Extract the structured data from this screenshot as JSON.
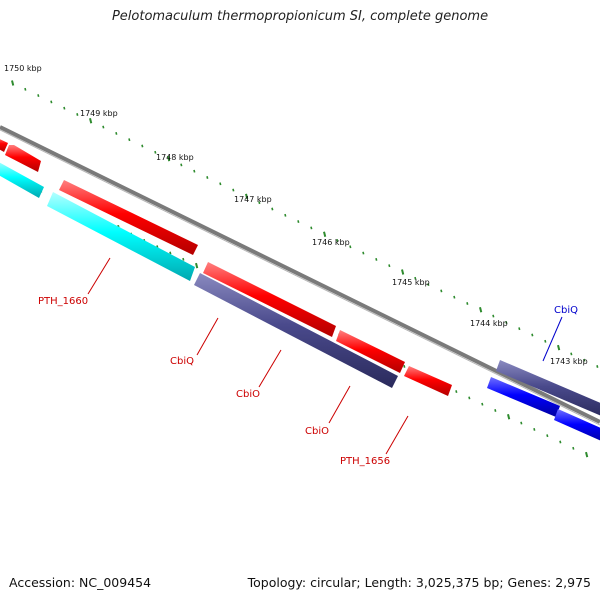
{
  "title": "Pelotomaculum thermopropionicum SI, complete genome",
  "footer": {
    "accession": "Accession: NC_009454",
    "topology": "Topology: circular; Length: 3,025,375 bp; Genes: 2,975"
  },
  "colors": {
    "backbone": "#808080",
    "forward_gene": "#ff0000",
    "reverse_gene_cyan": "#00ffff",
    "reverse_gene_purple": "#4a4a8c",
    "reverse_gene_blue": "#0000ff",
    "tick": "#2e8b2e",
    "label_red": "#cc0000",
    "label_blue": "#0000cc"
  },
  "ticks": [
    {
      "label": "1750 kbp"
    },
    {
      "label": "1749 kbp"
    },
    {
      "label": "1748 kbp"
    },
    {
      "label": "1747 kbp"
    },
    {
      "label": "1746 kbp"
    },
    {
      "label": "1745 kbp"
    },
    {
      "label": "1744 kbp"
    },
    {
      "label": "1743 kbp"
    }
  ],
  "gene_labels": [
    {
      "name": "PTH_1660",
      "color": "#cc0000"
    },
    {
      "name": "CbiQ",
      "color": "#cc0000"
    },
    {
      "name": "CbiO",
      "color": "#cc0000"
    },
    {
      "name": "CbiO",
      "color": "#cc0000"
    },
    {
      "name": "PTH_1656",
      "color": "#cc0000"
    },
    {
      "name": "CbiQ",
      "color": "#0000cc"
    }
  ]
}
